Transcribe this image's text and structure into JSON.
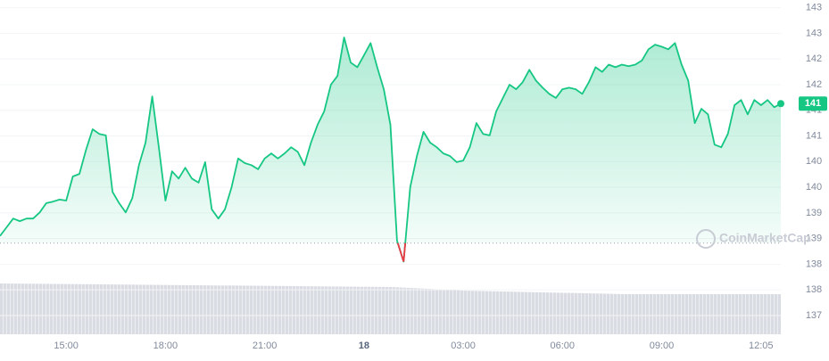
{
  "chart_data": {
    "type": "line",
    "color": "#16c784",
    "below_color": "#ea3943",
    "grid": true,
    "reference_line": 138.41,
    "watermark": "CoinMarketCap",
    "last_price_label": "141",
    "ylim": [
      136.2,
      143.15
    ],
    "yticks": [
      {
        "value": 137,
        "label": "137"
      },
      {
        "value": 137.5,
        "label": "138"
      },
      {
        "value": 138,
        "label": "138"
      },
      {
        "value": 138.5,
        "label": "139"
      },
      {
        "value": 139,
        "label": "139"
      },
      {
        "value": 139.5,
        "label": "140"
      },
      {
        "value": 140,
        "label": "140"
      },
      {
        "value": 140.5,
        "label": "141"
      },
      {
        "value": 141,
        "label": "141"
      },
      {
        "value": 141.5,
        "label": "142"
      },
      {
        "value": 142,
        "label": "142"
      },
      {
        "value": 142.5,
        "label": "143"
      },
      {
        "value": 143,
        "label": "143"
      }
    ],
    "categories": [
      null,
      null,
      null,
      null,
      null,
      null,
      null,
      null,
      null,
      null,
      "15:00",
      null,
      null,
      null,
      null,
      null,
      null,
      null,
      null,
      null,
      null,
      null,
      null,
      null,
      null,
      "18:00",
      null,
      null,
      null,
      null,
      null,
      null,
      null,
      null,
      null,
      null,
      null,
      null,
      null,
      null,
      "21:00",
      null,
      null,
      null,
      null,
      null,
      null,
      null,
      null,
      null,
      null,
      null,
      null,
      null,
      null,
      "18",
      null,
      null,
      null,
      null,
      null,
      null,
      null,
      null,
      null,
      null,
      null,
      null,
      null,
      null,
      "03:00",
      null,
      null,
      null,
      null,
      null,
      null,
      null,
      null,
      null,
      null,
      null,
      null,
      null,
      null,
      "06:00",
      null,
      null,
      null,
      null,
      null,
      null,
      null,
      null,
      null,
      null,
      null,
      null,
      null,
      null,
      "09:00",
      null,
      null,
      null,
      null,
      null,
      null,
      null,
      null,
      null,
      null,
      null,
      null,
      null,
      null,
      "12:05",
      null,
      null,
      null
    ],
    "values": [
      138.55,
      138.72,
      138.89,
      138.84,
      138.89,
      138.89,
      139.01,
      139.19,
      139.22,
      139.26,
      139.24,
      139.71,
      139.76,
      140.23,
      140.63,
      140.54,
      140.51,
      139.41,
      139.19,
      139.01,
      139.29,
      139.93,
      140.37,
      141.27,
      140.28,
      139.24,
      139.81,
      139.67,
      139.88,
      139.67,
      139.59,
      139.99,
      139.07,
      138.89,
      139.07,
      139.5,
      140.06,
      139.97,
      139.93,
      139.85,
      140.06,
      140.16,
      140.06,
      140.16,
      140.28,
      140.19,
      139.93,
      140.37,
      140.72,
      140.98,
      141.5,
      141.67,
      142.42,
      141.93,
      141.84,
      142.07,
      142.31,
      141.84,
      141.41,
      140.72,
      138.46,
      138.05,
      139.5,
      140.11,
      140.58,
      140.37,
      140.28,
      140.16,
      140.11,
      139.99,
      140.02,
      140.28,
      140.75,
      140.54,
      140.51,
      140.98,
      141.24,
      141.5,
      141.41,
      141.55,
      141.79,
      141.58,
      141.44,
      141.32,
      141.24,
      141.41,
      141.44,
      141.41,
      141.32,
      141.55,
      141.84,
      141.75,
      141.89,
      141.84,
      141.89,
      141.86,
      141.89,
      141.97,
      142.19,
      142.28,
      142.24,
      142.19,
      142.31,
      141.89,
      141.58,
      140.75,
      141.03,
      140.92,
      140.33,
      140.28,
      140.54,
      141.1,
      141.2,
      140.92,
      141.2,
      141.1,
      141.2,
      141.06,
      141.13
    ]
  }
}
